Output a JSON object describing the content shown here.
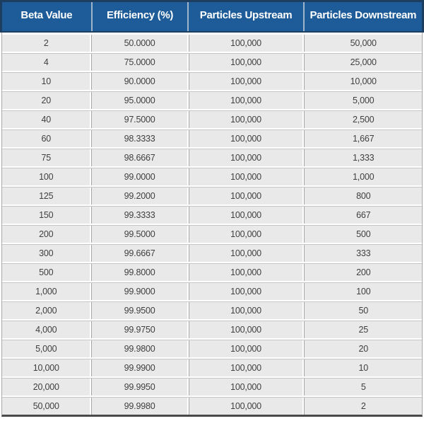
{
  "chart_data": {
    "type": "table",
    "columns": [
      "Beta Value",
      "Efficiency (%)",
      "Particles Upstream",
      "Particles Downstream"
    ],
    "rows": [
      [
        "2",
        "50.0000",
        "100,000",
        "50,000"
      ],
      [
        "4",
        "75.0000",
        "100,000",
        "25,000"
      ],
      [
        "10",
        "90.0000",
        "100,000",
        "10,000"
      ],
      [
        "20",
        "95.0000",
        "100,000",
        "5,000"
      ],
      [
        "40",
        "97.5000",
        "100,000",
        "2,500"
      ],
      [
        "60",
        "98.3333",
        "100,000",
        "1,667"
      ],
      [
        "75",
        "98.6667",
        "100,000",
        "1,333"
      ],
      [
        "100",
        "99.0000",
        "100,000",
        "1,000"
      ],
      [
        "125",
        "99.2000",
        "100,000",
        "800"
      ],
      [
        "150",
        "99.3333",
        "100,000",
        "667"
      ],
      [
        "200",
        "99.5000",
        "100,000",
        "500"
      ],
      [
        "300",
        "99.6667",
        "100,000",
        "333"
      ],
      [
        "500",
        "99.8000",
        "100,000",
        "200"
      ],
      [
        "1,000",
        "99.9000",
        "100,000",
        "100"
      ],
      [
        "2,000",
        "99.9500",
        "100,000",
        "50"
      ],
      [
        "4,000",
        "99.9750",
        "100,000",
        "25"
      ],
      [
        "5,000",
        "99.9800",
        "100,000",
        "20"
      ],
      [
        "10,000",
        "99.9900",
        "100,000",
        "10"
      ],
      [
        "20,000",
        "99.9950",
        "100,000",
        "5"
      ],
      [
        "50,000",
        "99.9980",
        "100,000",
        "2"
      ]
    ]
  },
  "colors": {
    "header_bg": "#1e5c99",
    "header_border": "#1d3e5f",
    "header_separator": "#9fb6ca",
    "header_text": "#ffffff",
    "row_bg": "#e9e9e9",
    "grid_line": "#a6a6a6",
    "body_side_border": "#a9a9a9",
    "bottom_rule": "#4a4a4a",
    "body_text": "#3f3f3f"
  }
}
